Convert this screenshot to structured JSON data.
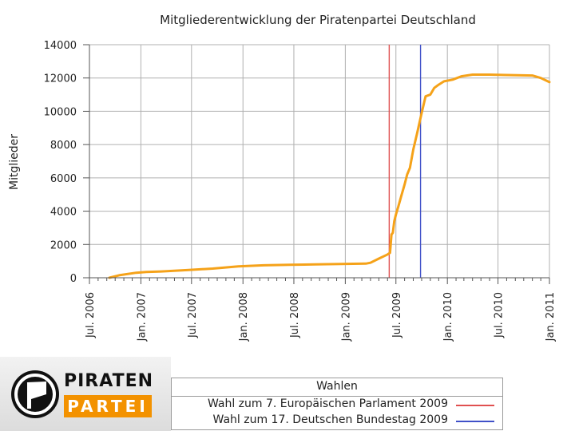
{
  "slide": {
    "logo": {
      "line1": "PIRATEN",
      "line2": "PARTEI"
    }
  },
  "colors": {
    "series": "#f5a219",
    "event_europe": "#e05050",
    "event_bundestag": "#4050c8",
    "grid": "#b0b0b0",
    "logo_orange": "#f39200"
  },
  "chart_data": {
    "type": "line",
    "title": "Mitgliederentwicklung der Piratenpartei Deutschland",
    "xlabel": "",
    "ylabel": "Mitglieder",
    "ylim": [
      0,
      14000
    ],
    "yticks": [
      0,
      2000,
      4000,
      6000,
      8000,
      10000,
      12000,
      14000
    ],
    "xlim": [
      "2006-07-01",
      "2011-01-01"
    ],
    "xtick_labels": [
      "Jul. 2006",
      "Jan. 2007",
      "Jul. 2007",
      "Jan. 2008",
      "Jul. 2008",
      "Jan. 2009",
      "Jul. 2009",
      "Jan. 2010",
      "Jul. 2010",
      "Jan. 2011"
    ],
    "grid": true,
    "series": [
      {
        "points": [
          [
            "2006-09-10",
            0
          ],
          [
            "2006-10-15",
            150
          ],
          [
            "2006-12-15",
            300
          ],
          [
            "2007-01-20",
            350
          ],
          [
            "2007-03-15",
            380
          ],
          [
            "2007-06-15",
            460
          ],
          [
            "2007-09-15",
            550
          ],
          [
            "2007-12-15",
            680
          ],
          [
            "2008-03-15",
            750
          ],
          [
            "2008-06-15",
            780
          ],
          [
            "2008-09-15",
            800
          ],
          [
            "2008-12-15",
            830
          ],
          [
            "2009-03-15",
            850
          ],
          [
            "2009-04-01",
            900
          ],
          [
            "2009-05-01",
            1150
          ],
          [
            "2009-06-01",
            1400
          ],
          [
            "2009-06-10",
            1500
          ],
          [
            "2009-06-15",
            2600
          ],
          [
            "2009-06-20",
            2700
          ],
          [
            "2009-06-25",
            3400
          ],
          [
            "2009-07-01",
            3800
          ],
          [
            "2009-07-10",
            4300
          ],
          [
            "2009-07-20",
            4900
          ],
          [
            "2009-08-01",
            5600
          ],
          [
            "2009-08-10",
            6200
          ],
          [
            "2009-08-20",
            6600
          ],
          [
            "2009-09-01",
            7700
          ],
          [
            "2009-09-15",
            8700
          ],
          [
            "2009-10-01",
            9900
          ],
          [
            "2009-10-15",
            10900
          ],
          [
            "2009-11-01",
            11000
          ],
          [
            "2009-11-15",
            11400
          ],
          [
            "2009-12-01",
            11600
          ],
          [
            "2009-12-20",
            11800
          ],
          [
            "2010-01-20",
            11900
          ],
          [
            "2010-02-20",
            12100
          ],
          [
            "2010-04-01",
            12200
          ],
          [
            "2010-06-01",
            12200
          ],
          [
            "2010-08-01",
            12180
          ],
          [
            "2010-11-01",
            12150
          ],
          [
            "2010-12-01",
            12000
          ],
          [
            "2011-01-01",
            11750
          ]
        ]
      }
    ],
    "events": [
      {
        "date": "2009-06-07",
        "color": "#e05050"
      },
      {
        "date": "2009-09-27",
        "color": "#4050c8"
      }
    ],
    "legend": {
      "title": "Wahlen",
      "entries": [
        {
          "label": "Wahl zum 7. Europäischen Parlament 2009",
          "color": "#e05050"
        },
        {
          "label": "Wahl zum 17. Deutschen Bundestag 2009",
          "color": "#4050c8"
        }
      ],
      "placement": "bottom"
    }
  }
}
